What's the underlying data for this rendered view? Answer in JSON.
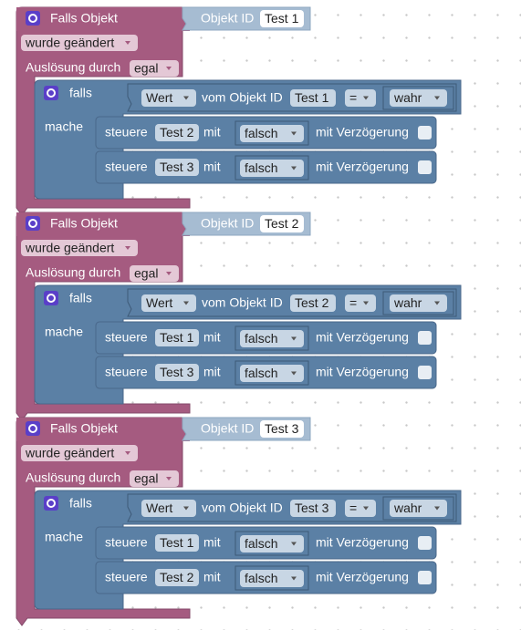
{
  "blocks": [
    {
      "title": "Falls Objekt",
      "object_label": "Objekt ID",
      "object_id": "Test 1",
      "event": "wurde geändert",
      "trigger_label": "Auslösung durch",
      "trigger": "egal",
      "if_label": "falls",
      "condition": {
        "attribute": "Wert",
        "of_label": "vom Objekt ID",
        "object_id": "Test 1",
        "operator": "=",
        "value": "wahr"
      },
      "do_label": "mache",
      "actions": [
        {
          "verb": "steuere",
          "target": "Test 2",
          "with_label": "mit",
          "value": "falsch",
          "delay_label": "mit Verzögerung"
        },
        {
          "verb": "steuere",
          "target": "Test 3",
          "with_label": "mit",
          "value": "falsch",
          "delay_label": "mit Verzögerung"
        }
      ]
    },
    {
      "title": "Falls Objekt",
      "object_label": "Objekt ID",
      "object_id": "Test 2",
      "event": "wurde geändert",
      "trigger_label": "Auslösung durch",
      "trigger": "egal",
      "if_label": "falls",
      "condition": {
        "attribute": "Wert",
        "of_label": "vom Objekt ID",
        "object_id": "Test 2",
        "operator": "=",
        "value": "wahr"
      },
      "do_label": "mache",
      "actions": [
        {
          "verb": "steuere",
          "target": "Test 1",
          "with_label": "mit",
          "value": "falsch",
          "delay_label": "mit Verzögerung"
        },
        {
          "verb": "steuere",
          "target": "Test 3",
          "with_label": "mit",
          "value": "falsch",
          "delay_label": "mit Verzögerung"
        }
      ]
    },
    {
      "title": "Falls Objekt",
      "object_label": "Objekt ID",
      "object_id": "Test 3",
      "event": "wurde geändert",
      "trigger_label": "Auslösung durch",
      "trigger": "egal",
      "if_label": "falls",
      "condition": {
        "attribute": "Wert",
        "of_label": "vom Objekt ID",
        "object_id": "Test 3",
        "operator": "=",
        "value": "wahr"
      },
      "do_label": "mache",
      "actions": [
        {
          "verb": "steuere",
          "target": "Test 1",
          "with_label": "mit",
          "value": "falsch",
          "delay_label": "mit Verzögerung"
        },
        {
          "verb": "steuere",
          "target": "Test 2",
          "with_label": "mit",
          "value": "falsch",
          "delay_label": "mit Verzögerung"
        }
      ]
    }
  ]
}
